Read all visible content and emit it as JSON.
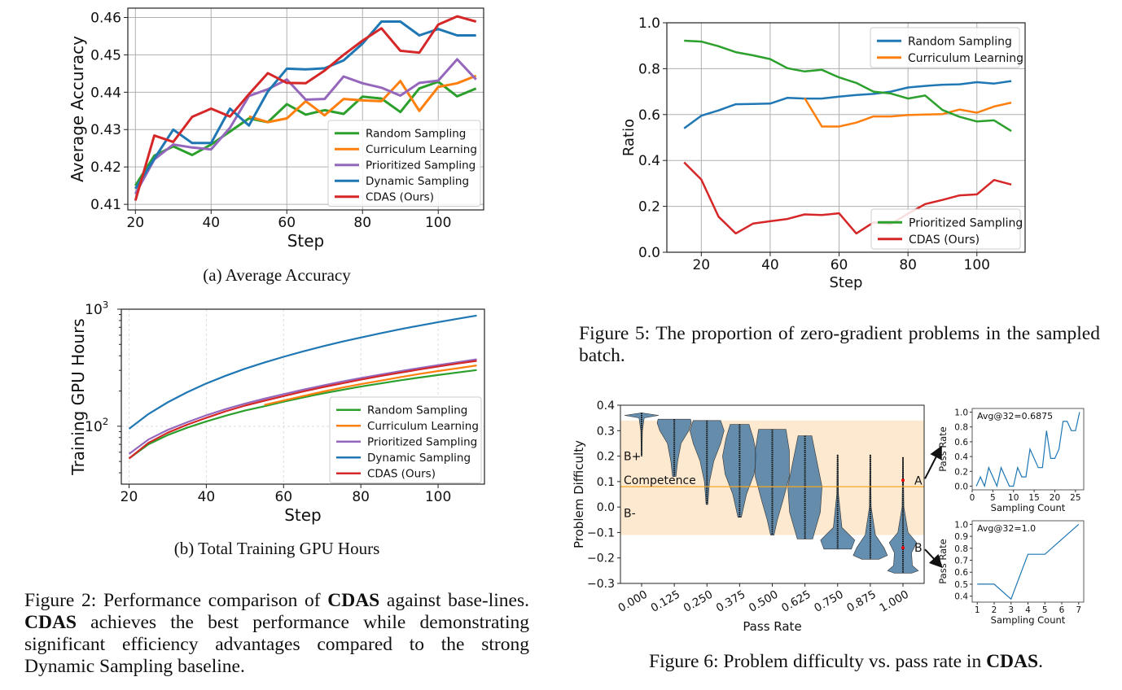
{
  "captions": {
    "fig2a": "(a) Average Accuracy",
    "fig2b": "(b) Total Training GPU Hours",
    "fig2": [
      {
        "t": "Figure 2: Performance comparison of ",
        "b": false
      },
      {
        "t": "CDAS",
        "b": true
      },
      {
        "t": " against base-lines. ",
        "b": false
      },
      {
        "t": "CDAS",
        "b": true
      },
      {
        "t": " achieves the best performance while demonstrating significant efficiency advantages compared to the strong Dynamic Sampling baseline.",
        "b": false
      }
    ],
    "fig5": "Figure 5: The proportion of zero-gradient problems in the sampled batch.",
    "fig6_prefix": "Figure 6: Problem difficulty vs. pass rate in ",
    "fig6_bold": "CDAS",
    "fig6_suffix": "."
  },
  "colors": {
    "blue": "#1f77b4",
    "orange": "#ff7f0e",
    "green": "#2ca02c",
    "red": "#d62728",
    "purple": "#9467bd",
    "violin": "#4a7ba3",
    "band": "#fde9cf",
    "competence": "#f5a623"
  },
  "chart_data": [
    {
      "id": "accuracy",
      "type": "line",
      "title": "",
      "xlabel": "Step",
      "ylabel": "Average Accuracy",
      "xlim": [
        18,
        112
      ],
      "ylim": [
        0.4085,
        0.4625
      ],
      "xticks": [
        20,
        40,
        60,
        80,
        100
      ],
      "yticks": [
        0.41,
        0.42,
        0.43,
        0.44,
        0.45,
        0.46
      ],
      "ytick_labels": [
        "0.41",
        "0.42",
        "0.43",
        "0.44",
        "0.45",
        "0.46"
      ],
      "grid": true,
      "legend": "bottom-right",
      "x": [
        20,
        25,
        30,
        35,
        40,
        45,
        50,
        55,
        60,
        65,
        70,
        75,
        80,
        85,
        90,
        95,
        100,
        105,
        110
      ],
      "series": [
        {
          "name": "Random Sampling",
          "color": "green",
          "values": [
            0.415,
            0.423,
            0.4255,
            0.4232,
            0.426,
            0.4295,
            0.433,
            0.432,
            0.4368,
            0.434,
            0.4352,
            0.4342,
            0.4388,
            0.4383,
            0.4347,
            0.441,
            0.4428,
            0.4389,
            0.441
          ]
        },
        {
          "name": "Curriculum Learning",
          "color": "orange",
          "start": 50,
          "values": [
            null,
            null,
            null,
            null,
            null,
            null,
            0.4335,
            0.432,
            0.433,
            0.4376,
            0.4338,
            0.4382,
            0.4378,
            0.4376,
            0.443,
            0.435,
            0.4414,
            0.4424,
            0.4444
          ]
        },
        {
          "name": "Prioritized Sampling",
          "color": "purple",
          "values": [
            0.4128,
            0.422,
            0.426,
            0.4252,
            0.4247,
            0.4305,
            0.439,
            0.4408,
            0.4434,
            0.438,
            0.4382,
            0.4442,
            0.4424,
            0.4412,
            0.4391,
            0.4425,
            0.4431,
            0.4488,
            0.4434
          ]
        },
        {
          "name": "Dynamic Sampling",
          "color": "blue",
          "values": [
            0.4142,
            0.4222,
            0.43,
            0.4264,
            0.4264,
            0.4356,
            0.4311,
            0.4402,
            0.4463,
            0.4461,
            0.4464,
            0.4485,
            0.453,
            0.4589,
            0.4589,
            0.4552,
            0.4569,
            0.4552,
            0.4552
          ]
        },
        {
          "name": "CDAS (Ours)",
          "color": "red",
          "values": [
            0.411,
            0.4284,
            0.4267,
            0.4334,
            0.4356,
            0.4335,
            0.4395,
            0.4451,
            0.4425,
            0.4424,
            0.4458,
            0.45,
            0.4538,
            0.4571,
            0.4511,
            0.4506,
            0.4581,
            0.4603,
            0.4589
          ]
        }
      ]
    },
    {
      "id": "gpu_hours",
      "type": "line",
      "title": "",
      "xlabel": "Step",
      "ylabel": "Training GPU Hours",
      "yscale": "log",
      "xlim": [
        18,
        112
      ],
      "ylim": [
        32,
        1000
      ],
      "xticks": [
        20,
        40,
        60,
        80,
        100
      ],
      "yticks": [
        100,
        1000
      ],
      "ytick_labels": [
        "10²",
        "10³"
      ],
      "grid": true,
      "legend": "bottom-right",
      "x": [
        20,
        25,
        30,
        35,
        40,
        45,
        50,
        55,
        60,
        65,
        70,
        75,
        80,
        85,
        90,
        95,
        100,
        105,
        110
      ],
      "series": [
        {
          "name": "Random Sampling",
          "color": "green",
          "values": [
            53,
            70,
            84,
            97,
            110,
            123,
            136,
            148,
            162,
            176,
            190,
            204,
            218,
            232,
            246,
            260,
            274,
            288,
            302
          ]
        },
        {
          "name": "Curriculum Learning",
          "color": "orange",
          "start": 55,
          "values": [
            null,
            null,
            null,
            null,
            null,
            null,
            null,
            152,
            166,
            181,
            197,
            213,
            229,
            245,
            262,
            279,
            296,
            313,
            331
          ]
        },
        {
          "name": "Prioritized Sampling",
          "color": "purple",
          "values": [
            58,
            77,
            93,
            108,
            124,
            140,
            156,
            172,
            188,
            205,
            222,
            240,
            258,
            276,
            295,
            314,
            333,
            352,
            373
          ]
        },
        {
          "name": "Dynamic Sampling",
          "color": "blue",
          "values": [
            95,
            127,
            160,
            195,
            232,
            270,
            310,
            350,
            392,
            436,
            480,
            526,
            573,
            622,
            672,
            723,
            775,
            828,
            882
          ]
        },
        {
          "name": "CDAS (Ours)",
          "color": "red",
          "values": [
            53,
            72,
            88,
            103,
            118,
            134,
            150,
            165,
            181,
            198,
            215,
            232,
            250,
            268,
            286,
            305,
            324,
            343,
            362
          ]
        }
      ]
    },
    {
      "id": "zero_gradient_ratio",
      "type": "line",
      "title": "",
      "xlabel": "Step",
      "ylabel": "Ratio",
      "xlim": [
        10,
        114
      ],
      "ylim": [
        0.0,
        1.0
      ],
      "xticks": [
        20,
        40,
        60,
        80,
        100
      ],
      "yticks": [
        0.0,
        0.2,
        0.4,
        0.6,
        0.8,
        1.0
      ],
      "ytick_labels": [
        "0.0",
        "0.2",
        "0.4",
        "0.6",
        "0.8",
        "1.0"
      ],
      "grid": true,
      "legend": [
        "top-right",
        "bottom-right"
      ],
      "x": [
        15,
        20,
        25,
        30,
        35,
        40,
        45,
        50,
        55,
        60,
        65,
        70,
        75,
        80,
        85,
        90,
        95,
        100,
        105,
        110
      ],
      "series": [
        {
          "name": "Random Sampling",
          "color": "blue",
          "legend_group": 0,
          "values": [
            0.54,
            0.595,
            0.618,
            0.645,
            0.646,
            0.648,
            0.673,
            0.67,
            0.67,
            0.678,
            0.685,
            0.69,
            0.7,
            0.718,
            0.725,
            0.73,
            0.732,
            0.741,
            0.735,
            0.746
          ]
        },
        {
          "name": "Curriculum Learning",
          "color": "orange",
          "legend_group": 0,
          "start": 50,
          "values": [
            null,
            null,
            null,
            null,
            null,
            null,
            null,
            0.672,
            0.548,
            0.548,
            0.565,
            0.592,
            0.592,
            0.598,
            0.6,
            0.602,
            0.622,
            0.608,
            0.635,
            0.652
          ]
        },
        {
          "name": "Prioritized Sampling",
          "color": "green",
          "legend_group": 1,
          "values": [
            0.922,
            0.918,
            0.898,
            0.872,
            0.858,
            0.842,
            0.802,
            0.788,
            0.795,
            0.762,
            0.738,
            0.7,
            0.692,
            0.67,
            0.683,
            0.62,
            0.59,
            0.57,
            0.575,
            0.528
          ]
        },
        {
          "name": "CDAS (Ours)",
          "color": "red",
          "legend_group": 1,
          "values": [
            0.392,
            0.317,
            0.155,
            0.082,
            0.125,
            0.135,
            0.145,
            0.165,
            0.162,
            0.17,
            0.082,
            0.13,
            0.122,
            0.168,
            0.21,
            0.228,
            0.248,
            0.252,
            0.315,
            0.295
          ]
        }
      ]
    },
    {
      "id": "difficulty_vs_passrate",
      "type": "violin",
      "title": "",
      "xlabel": "Pass Rate",
      "ylabel": "Problem Difficulty",
      "ylim": [
        -0.3,
        0.4
      ],
      "yticks": [
        -0.3,
        -0.2,
        -0.1,
        0.0,
        0.1,
        0.2,
        0.3,
        0.4
      ],
      "ytick_labels": [
        "−0.3",
        "−0.2",
        "−0.1",
        "0.0",
        "0.1",
        "0.2",
        "0.3",
        "0.4"
      ],
      "categories": [
        "0.000",
        "0.125",
        "0.250",
        "0.375",
        "0.500",
        "0.625",
        "0.750",
        "0.875",
        "1.000"
      ],
      "violins": [
        {
          "min": 0.2,
          "max": 0.37,
          "widths": [
            [
              0.37,
              0.0
            ],
            [
              0.36,
              1.0
            ],
            [
              0.35,
              0.15
            ],
            [
              0.3,
              0.05
            ],
            [
              0.2,
              0.02
            ]
          ]
        },
        {
          "min": 0.12,
          "max": 0.345,
          "widths": [
            [
              0.345,
              0.95
            ],
            [
              0.33,
              1.0
            ],
            [
              0.3,
              0.85
            ],
            [
              0.25,
              0.4
            ],
            [
              0.18,
              0.2
            ],
            [
              0.12,
              0.1
            ]
          ]
        },
        {
          "min": 0.01,
          "max": 0.34,
          "widths": [
            [
              0.34,
              0.8
            ],
            [
              0.3,
              1.0
            ],
            [
              0.25,
              0.8
            ],
            [
              0.18,
              0.4
            ],
            [
              0.1,
              0.15
            ],
            [
              0.01,
              0.05
            ]
          ]
        },
        {
          "min": -0.04,
          "max": 0.325,
          "widths": [
            [
              0.325,
              0.55
            ],
            [
              0.27,
              0.8
            ],
            [
              0.2,
              1.0
            ],
            [
              0.13,
              0.85
            ],
            [
              0.05,
              0.4
            ],
            [
              -0.04,
              0.1
            ]
          ]
        },
        {
          "min": -0.11,
          "max": 0.305,
          "widths": [
            [
              0.305,
              0.8
            ],
            [
              0.22,
              1.0
            ],
            [
              0.12,
              1.0
            ],
            [
              0.02,
              0.6
            ],
            [
              -0.05,
              0.3
            ],
            [
              -0.11,
              0.1
            ]
          ]
        },
        {
          "min": -0.125,
          "max": 0.28,
          "widths": [
            [
              0.28,
              0.4
            ],
            [
              0.18,
              0.7
            ],
            [
              0.08,
              1.0
            ],
            [
              -0.02,
              0.9
            ],
            [
              -0.09,
              0.6
            ],
            [
              -0.125,
              0.45
            ]
          ]
        },
        {
          "min": -0.165,
          "max": 0.205,
          "widths": [
            [
              0.205,
              0.02
            ],
            [
              0.05,
              0.05
            ],
            [
              -0.08,
              0.25
            ],
            [
              -0.13,
              1.0
            ],
            [
              -0.165,
              0.8
            ]
          ]
        },
        {
          "min": -0.205,
          "max": 0.205,
          "widths": [
            [
              0.205,
              0.02
            ],
            [
              0.0,
              0.05
            ],
            [
              -0.11,
              0.3
            ],
            [
              -0.16,
              0.8
            ],
            [
              -0.19,
              1.0
            ],
            [
              -0.205,
              0.5
            ]
          ]
        },
        {
          "min": -0.26,
          "max": 0.195,
          "widths": [
            [
              0.195,
              0.02
            ],
            [
              0.0,
              0.05
            ],
            [
              -0.1,
              0.3
            ],
            [
              -0.14,
              0.8
            ],
            [
              -0.18,
              0.5
            ],
            [
              -0.23,
              0.55
            ],
            [
              -0.25,
              0.9
            ],
            [
              -0.26,
              0.5
            ]
          ]
        }
      ],
      "band": {
        "upper": 0.34,
        "lower": -0.11
      },
      "competence": 0.08,
      "annotations": [
        {
          "text": "B+",
          "y": 0.2
        },
        {
          "text": "Competence",
          "y": 0.1
        },
        {
          "text": "B-",
          "y": -0.02
        },
        {
          "text": "A",
          "point": [
            1.0,
            0.105
          ]
        },
        {
          "text": "B",
          "point": [
            1.0,
            -0.16
          ]
        }
      ]
    },
    {
      "id": "inset_A",
      "type": "line",
      "xlabel": "Sampling Count",
      "ylabel": "Pass Rate",
      "annotation": "Avg@32=0.6875",
      "xlim": [
        0,
        27
      ],
      "ylim": [
        -0.05,
        1.05
      ],
      "xticks": [
        0,
        5,
        10,
        15,
        20,
        25
      ],
      "yticks": [
        0.0,
        0.2,
        0.4,
        0.6,
        0.8,
        1.0
      ],
      "ytick_labels": [
        "0.0",
        "0.2",
        "0.4",
        "0.6",
        "0.8",
        "1.0"
      ],
      "x": [
        1,
        2,
        3,
        4,
        5,
        6,
        7,
        8,
        9,
        10,
        11,
        12,
        13,
        14,
        15,
        16,
        17,
        18,
        19,
        20,
        21,
        22,
        23,
        24,
        25,
        26
      ],
      "values": [
        0,
        0.125,
        0,
        0.25,
        0.125,
        0,
        0.25,
        0.125,
        0,
        0,
        0.25,
        0.125,
        0.125,
        0.5,
        0.375,
        0.25,
        0.25,
        0.75,
        0.375,
        0.375,
        0.5,
        0.875,
        0.875,
        0.75,
        0.75,
        1.0
      ]
    },
    {
      "id": "inset_B",
      "type": "line",
      "xlabel": "Sampling Count",
      "ylabel": "Pass Rate",
      "annotation": "Avg@32=1.0",
      "xlim": [
        0.7,
        7.3
      ],
      "ylim": [
        0.35,
        1.03
      ],
      "xticks": [
        1,
        2,
        3,
        4,
        5,
        6,
        7
      ],
      "yticks": [
        0.4,
        0.5,
        0.6,
        0.7,
        0.8,
        0.9,
        1.0
      ],
      "ytick_labels": [
        "0.4",
        "0.5",
        "0.6",
        "0.7",
        "0.8",
        "0.9",
        "1.0"
      ],
      "x": [
        1,
        2,
        3,
        4,
        5,
        6,
        7
      ],
      "values": [
        0.5,
        0.5,
        0.375,
        0.75,
        0.75,
        0.875,
        1.0
      ]
    }
  ]
}
